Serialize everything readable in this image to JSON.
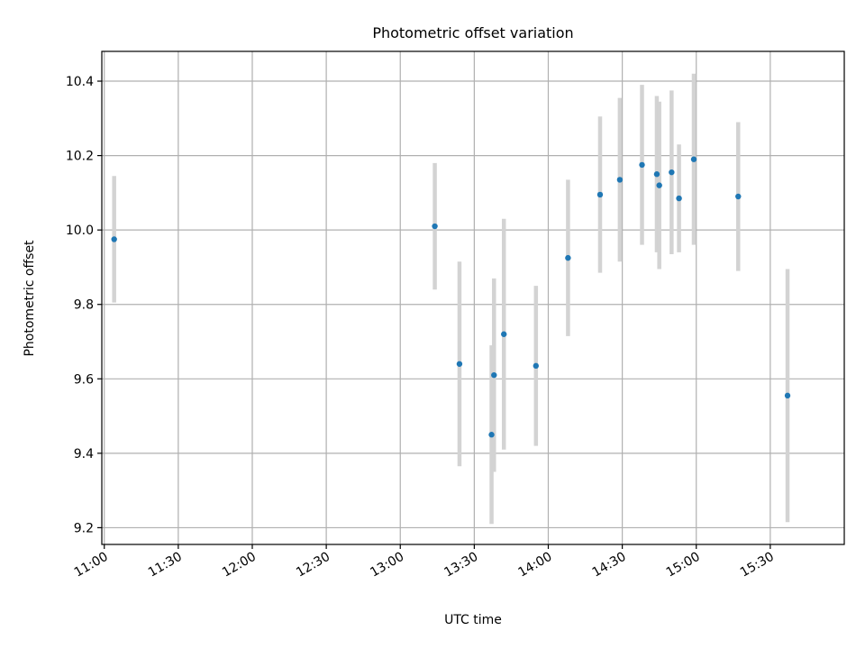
{
  "chart_data": {
    "type": "scatter",
    "title": "Photometric offset variation",
    "xlabel": "UTC time",
    "ylabel": "Photometric offset",
    "xlim": [
      "10:59",
      "16:00"
    ],
    "ylim": [
      9.155,
      10.48
    ],
    "grid": true,
    "x_ticks": [
      "11:00",
      "11:30",
      "12:00",
      "12:30",
      "13:00",
      "13:30",
      "14:00",
      "14:30",
      "15:00",
      "15:30"
    ],
    "y_ticks": [
      9.2,
      9.4,
      9.6,
      9.8,
      10.0,
      10.2,
      10.4
    ],
    "y_tick_labels": [
      "9.2",
      "9.4",
      "9.6",
      "9.8",
      "10.0",
      "10.2",
      "10.4"
    ],
    "marker_color": "#1f77b4",
    "errorbar_color": "#d3d3d3",
    "points": [
      {
        "x": "11:04",
        "y": 9.975,
        "err": 0.17
      },
      {
        "x": "13:14",
        "y": 10.01,
        "err": 0.17
      },
      {
        "x": "13:24",
        "y": 9.64,
        "err": 0.275
      },
      {
        "x": "13:37",
        "y": 9.45,
        "err": 0.24
      },
      {
        "x": "13:38",
        "y": 9.61,
        "err": 0.26
      },
      {
        "x": "13:42",
        "y": 9.72,
        "err": 0.31
      },
      {
        "x": "13:55",
        "y": 9.635,
        "err": 0.215
      },
      {
        "x": "14:08",
        "y": 9.925,
        "err": 0.21
      },
      {
        "x": "14:21",
        "y": 10.095,
        "err": 0.21
      },
      {
        "x": "14:29",
        "y": 10.135,
        "err": 0.22
      },
      {
        "x": "14:38",
        "y": 10.175,
        "err": 0.215
      },
      {
        "x": "14:44",
        "y": 10.15,
        "err": 0.21
      },
      {
        "x": "14:45",
        "y": 10.12,
        "err": 0.225
      },
      {
        "x": "14:50",
        "y": 10.155,
        "err": 0.22
      },
      {
        "x": "14:53",
        "y": 10.085,
        "err": 0.145
      },
      {
        "x": "14:59",
        "y": 10.19,
        "err": 0.23
      },
      {
        "x": "15:17",
        "y": 10.09,
        "err": 0.2
      },
      {
        "x": "15:37",
        "y": 9.555,
        "err": 0.34
      }
    ]
  }
}
